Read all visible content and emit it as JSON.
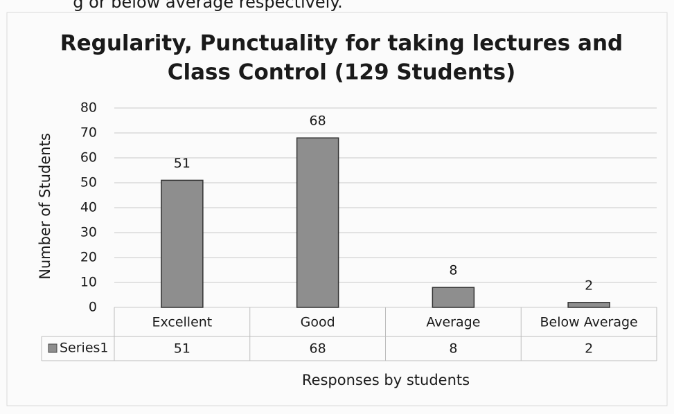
{
  "caption": "g or below average respectively.",
  "chart_data": {
    "type": "bar",
    "title_lines": [
      "Regularity, Punctuality for taking lectures and",
      "Class Control (129 Students)"
    ],
    "y_label": "Number of Students",
    "x_label": "Responses by students",
    "categories": [
      "Excellent",
      "Good",
      "Average",
      "Below Average"
    ],
    "series": [
      {
        "name": "Series1",
        "color": "#8e8e8e",
        "values": [
          51,
          68,
          8,
          2
        ]
      }
    ],
    "ylim": [
      0,
      80
    ],
    "yticks": [
      0,
      10,
      20,
      30,
      40,
      50,
      60,
      70,
      80
    ],
    "grid": true
  }
}
